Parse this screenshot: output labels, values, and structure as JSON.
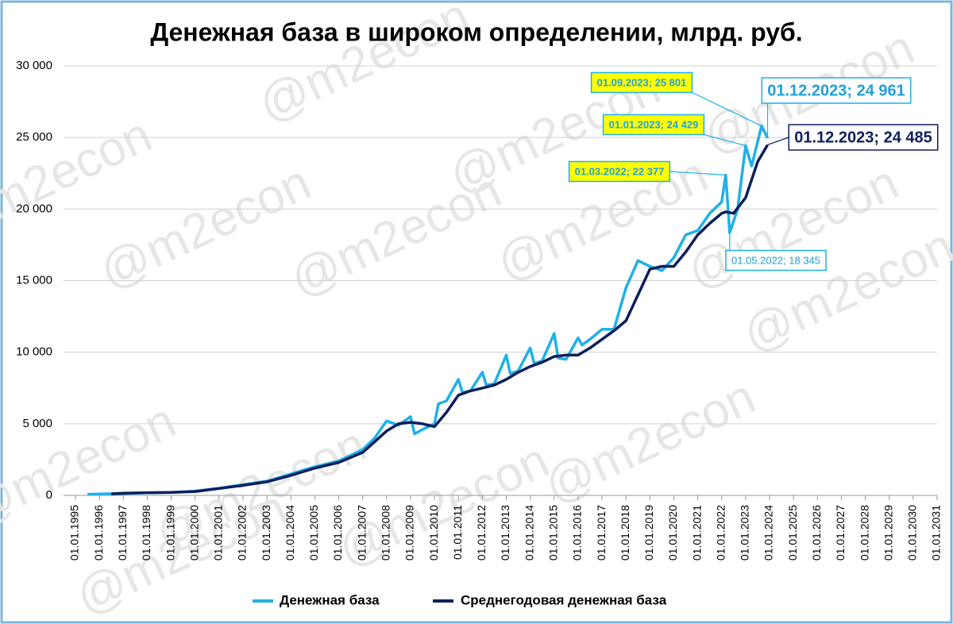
{
  "chart_data": {
    "type": "line",
    "title": "Денежная база в широком определении, млрд. руб.",
    "watermark": "@m2econ",
    "xlim": [
      "01.01.1995",
      "01.01.2031"
    ],
    "xticks": [
      "01.01.1995",
      "01.01.1996",
      "01.01.1997",
      "01.01.1998",
      "01.01.1999",
      "01.01.2000",
      "01.01.2001",
      "01.01.2002",
      "01.01.2003",
      "01.01.2004",
      "01.01.2005",
      "01.01.2006",
      "01.01.2007",
      "01.01.2008",
      "01.01.2009",
      "01.01.2010",
      "01.01.2011",
      "01.01.2012",
      "01.01.2013",
      "01.01.2014",
      "01.01.2015",
      "01.01.2016",
      "01.01.2017",
      "01.01.2018",
      "01.01.2019",
      "01.01.2020",
      "01.01.2021",
      "01.01.2022",
      "01.01.2023",
      "01.01.2024",
      "01.01.2025",
      "01.01.2026",
      "01.01.2027",
      "01.01.2028",
      "01.01.2029",
      "01.01.2030",
      "01.01.2031"
    ],
    "ylim": [
      0,
      30000
    ],
    "yticks": [
      0,
      {
        "value": 5000,
        "label": "5 000"
      },
      {
        "value": 10000,
        "label": "10 000"
      },
      {
        "value": 15000,
        "label": "15 000"
      },
      {
        "value": 20000,
        "label": "20 000"
      },
      {
        "value": 25000,
        "label": "25 000"
      },
      {
        "value": 30000,
        "label": "30 000"
      }
    ],
    "grid": true,
    "legend": "bottom",
    "series": [
      {
        "name": "Денежная база",
        "color": "#1fb0e8",
        "x": [
          "01.07.1995",
          "01.01.1996",
          "01.01.1997",
          "01.01.1998",
          "01.01.1999",
          "01.01.2000",
          "01.01.2001",
          "01.01.2002",
          "01.01.2003",
          "01.01.2004",
          "01.01.2005",
          "01.01.2006",
          "01.01.2007",
          "01.07.2007",
          "01.01.2008",
          "01.07.2008",
          "01.01.2009",
          "01.03.2009",
          "01.07.2009",
          "01.01.2010",
          "01.03.2010",
          "01.07.2010",
          "01.01.2011",
          "01.03.2011",
          "01.07.2011",
          "01.01.2012",
          "01.03.2012",
          "01.07.2012",
          "01.01.2013",
          "01.03.2013",
          "01.07.2013",
          "01.01.2014",
          "01.03.2014",
          "01.07.2014",
          "01.01.2015",
          "01.03.2015",
          "01.07.2015",
          "01.01.2016",
          "01.03.2016",
          "01.07.2016",
          "01.01.2017",
          "01.07.2017",
          "01.01.2018",
          "01.07.2018",
          "01.01.2019",
          "01.07.2019",
          "01.01.2020",
          "01.07.2020",
          "01.01.2021",
          "01.07.2021",
          "01.01.2022",
          "01.03.2022",
          "01.05.2022",
          "01.09.2022",
          "01.01.2023",
          "01.04.2023",
          "01.09.2023",
          "01.12.2023"
        ],
        "values": [
          80,
          100,
          130,
          180,
          210,
          300,
          500,
          750,
          1000,
          1500,
          2000,
          2400,
          3200,
          4000,
          5200,
          4900,
          5500,
          4300,
          4600,
          5000,
          6400,
          6600,
          8100,
          7200,
          7300,
          8600,
          7700,
          7800,
          9800,
          8500,
          8700,
          10300,
          9200,
          9400,
          11300,
          9600,
          9500,
          11000,
          10500,
          10900,
          11600,
          11600,
          14500,
          16400,
          16000,
          15700,
          16600,
          18200,
          18500,
          19700,
          20500,
          22377,
          18345,
          20000,
          24429,
          23000,
          25801,
          24961
        ],
        "value_labels": [
          null,
          null,
          null,
          null,
          null,
          null,
          null,
          null,
          null,
          null,
          null,
          null,
          null,
          null,
          null,
          null,
          null,
          null,
          null,
          null,
          null,
          null,
          null,
          null,
          null,
          null,
          null,
          null,
          null,
          null,
          null,
          null,
          null,
          null,
          null,
          null,
          null,
          null,
          null,
          null,
          null,
          null,
          null,
          null,
          null,
          null,
          null,
          null,
          null,
          null,
          null,
          "01.03.2022; 22 377",
          "01.05.2022; 18 345",
          null,
          "01.01.2023; 24 429",
          null,
          "01.09.2023; 25 801",
          "01.12.2023;  24 961"
        ]
      },
      {
        "name": "Среднегодовая денежная база",
        "color": "#0d1f5c",
        "x": [
          "01.07.1996",
          "01.01.1997",
          "01.01.1998",
          "01.01.1999",
          "01.01.2000",
          "01.01.2001",
          "01.01.2002",
          "01.01.2003",
          "01.01.2004",
          "01.01.2005",
          "01.01.2006",
          "01.01.2007",
          "01.01.2008",
          "01.07.2008",
          "01.01.2009",
          "01.07.2009",
          "01.01.2010",
          "01.07.2010",
          "01.01.2011",
          "01.07.2011",
          "01.01.2012",
          "01.07.2012",
          "01.01.2013",
          "01.07.2013",
          "01.01.2014",
          "01.07.2014",
          "01.01.2015",
          "01.07.2015",
          "01.01.2016",
          "01.07.2016",
          "01.01.2017",
          "01.07.2017",
          "01.01.2018",
          "01.07.2018",
          "01.01.2019",
          "01.07.2019",
          "01.01.2020",
          "01.07.2020",
          "01.01.2021",
          "01.07.2021",
          "01.01.2022",
          "01.03.2022",
          "01.07.2022",
          "01.01.2023",
          "01.07.2023",
          "01.12.2023"
        ],
        "values": [
          110,
          150,
          190,
          210,
          270,
          480,
          700,
          950,
          1400,
          1900,
          2300,
          3000,
          4500,
          5000,
          5100,
          5000,
          4800,
          5800,
          7000,
          7300,
          7500,
          7700,
          8100,
          8600,
          9000,
          9300,
          9700,
          9800,
          9800,
          10300,
          10900,
          11500,
          12200,
          14000,
          15800,
          16000,
          16000,
          17000,
          18200,
          19000,
          19700,
          19800,
          19700,
          20800,
          23300,
          24485
        ],
        "value_labels": [
          null,
          null,
          null,
          null,
          null,
          null,
          null,
          null,
          null,
          null,
          null,
          null,
          null,
          null,
          null,
          null,
          null,
          null,
          null,
          null,
          null,
          null,
          null,
          null,
          null,
          null,
          null,
          null,
          null,
          null,
          null,
          null,
          null,
          null,
          null,
          null,
          null,
          null,
          null,
          null,
          null,
          null,
          null,
          null,
          null,
          "01.12.2023;  24 485"
        ]
      }
    ]
  }
}
